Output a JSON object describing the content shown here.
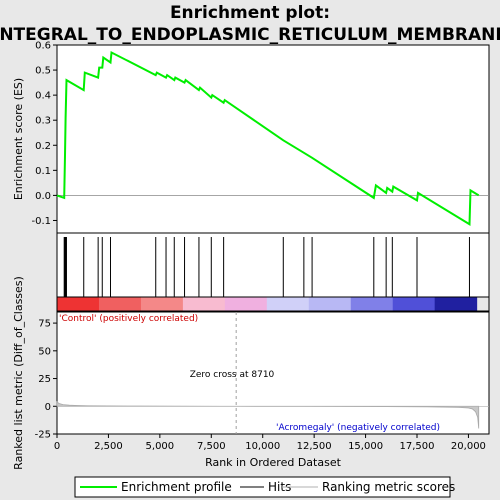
{
  "chart_data": {
    "type": "line",
    "title_line1": "Enrichment plot:",
    "title_line2": "INTEGRAL_TO_ENDOPLASMIC_RETICULUM_MEMBRANE",
    "xlabel": "Rank in Ordered Dataset",
    "ylabel_top": "Enrichment score (ES)",
    "ylabel_bottom": "Ranked list metric (Diff_of_Classes)",
    "xlim": [
      0,
      21000
    ],
    "xticks": [
      0,
      2500,
      5000,
      7500,
      10000,
      12500,
      15000,
      17500,
      20000
    ],
    "xtick_labels": [
      "0",
      "2,500",
      "5,000",
      "7,500",
      "10,000",
      "12,500",
      "15,000",
      "17,500",
      "20,000"
    ],
    "es_ylim": [
      -0.15,
      0.6
    ],
    "es_yticks": [
      -0.1,
      0.0,
      0.1,
      0.2,
      0.3,
      0.4,
      0.5,
      0.6
    ],
    "es_ytick_labels": [
      "-0.1",
      "0.0",
      "0.1",
      "0.2",
      "0.3",
      "0.4",
      "0.5",
      "0.6"
    ],
    "metric_ylim": [
      -25,
      85
    ],
    "metric_yticks": [
      -25,
      0,
      25,
      50,
      75
    ],
    "metric_ytick_labels": [
      "-25",
      "0",
      "25",
      "50",
      "75"
    ],
    "enrichment_profile": {
      "name": "Enrichment profile",
      "color": "#00ee00",
      "x": [
        0,
        350,
        390,
        420,
        460,
        1300,
        1350,
        2000,
        2050,
        2200,
        2250,
        2600,
        2650,
        4800,
        4850,
        5300,
        5350,
        5700,
        5750,
        6200,
        6250,
        6900,
        6950,
        7500,
        7550,
        8100,
        8150,
        11000,
        12000,
        12400,
        15400,
        15500,
        16000,
        16050,
        16300,
        16350,
        17500,
        17550,
        20050,
        20100,
        20500
      ],
      "y": [
        0.0,
        -0.01,
        0.16,
        0.31,
        0.46,
        0.42,
        0.49,
        0.47,
        0.51,
        0.51,
        0.55,
        0.53,
        0.57,
        0.48,
        0.49,
        0.47,
        0.48,
        0.46,
        0.47,
        0.45,
        0.46,
        0.42,
        0.43,
        0.39,
        0.4,
        0.37,
        0.38,
        0.22,
        0.17,
        0.15,
        -0.01,
        0.04,
        0.01,
        0.03,
        0.015,
        0.035,
        -0.02,
        0.01,
        -0.115,
        0.02,
        0.0
      ]
    },
    "hits": {
      "name": "Hits",
      "x": [
        350,
        390,
        420,
        460,
        1300,
        2000,
        2200,
        2600,
        4800,
        5300,
        5700,
        6200,
        6900,
        7500,
        8100,
        11000,
        12000,
        12400,
        15400,
        16000,
        16300,
        17500,
        20050
      ]
    },
    "ranking_metric": {
      "name": "Ranking metric scores",
      "x": [
        0,
        100,
        300,
        600,
        1000,
        1500,
        2500,
        4000,
        6000,
        8000,
        8710,
        10000,
        12000,
        14000,
        16000,
        18000,
        19500,
        20000,
        20200,
        20350,
        20450,
        20500
      ],
      "y": [
        4,
        2.5,
        1.5,
        1.0,
        0.7,
        0.5,
        0.3,
        0.2,
        0.1,
        0.05,
        0,
        -0.05,
        -0.1,
        -0.2,
        -0.3,
        -0.5,
        -1,
        -1.5,
        -2.5,
        -5,
        -10,
        -20
      ]
    },
    "zero_cross": 8710,
    "annotations": {
      "pos_label": "'Control' (positively correlated)",
      "neg_label": "'Acromegaly' (negatively correlated)",
      "zero_cross_label": "Zero cross at 8710"
    },
    "legend": {
      "placement": "bottom",
      "items": [
        "Enrichment profile",
        "Hits",
        "Ranking metric scores"
      ]
    },
    "heatbar_colors": [
      "#ee3333",
      "#f06060",
      "#f48888",
      "#f8bbd0",
      "#f0b0e0",
      "#d0d0f8",
      "#b8b8f4",
      "#8080e8",
      "#5050d8",
      "#2020a0"
    ],
    "colors": {
      "profile": "#00ee00",
      "hits": "#000000",
      "metric": "#b0b0b0",
      "zero_line": "#a0a0a0",
      "pos_text": "#cc0000",
      "neg_text": "#0000cc"
    }
  }
}
